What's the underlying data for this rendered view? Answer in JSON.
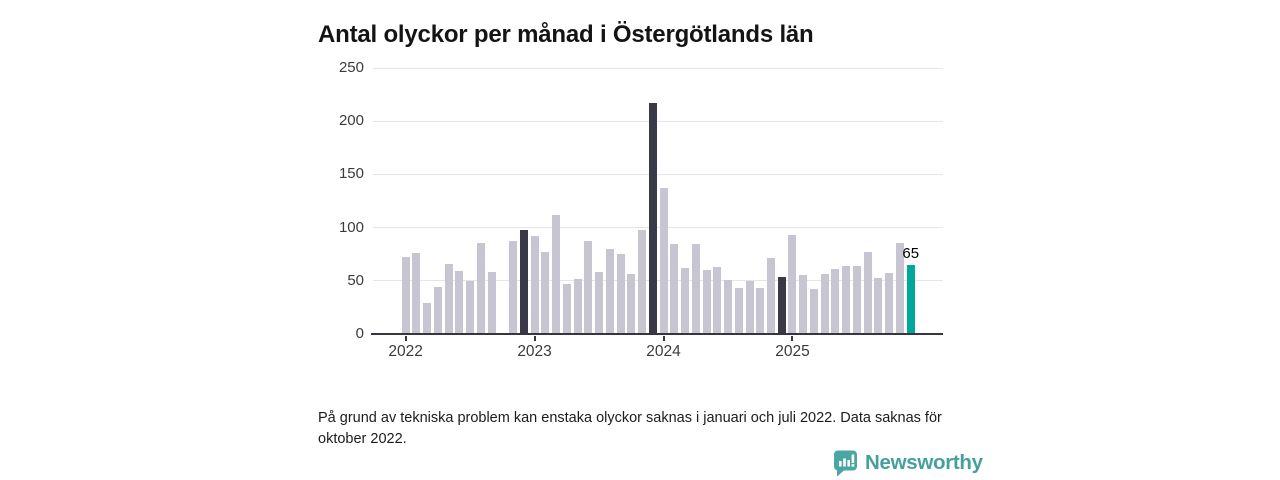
{
  "title": "Antal olyckor per månad i Östergötlands län",
  "footnote": {
    "lines": [
      "På grund av tekniska problem kan enstaka olyckor saknas i januari och juli 2022. Data saknas för",
      "oktober 2022."
    ]
  },
  "branding": {
    "logo_text": "Newsworthy",
    "logo_icon": "speech-bubble-bar-chart-icon"
  },
  "colors": {
    "bar_normal": "#c7c5d2",
    "bar_dark": "#3a3947",
    "bar_highlight": "#00a79b",
    "gridline": "#e5e5e9",
    "axis": "#37363f",
    "logo": "#45a09c"
  },
  "chart_data": {
    "type": "bar",
    "title": "Antal olyckor per månad i Östergötlands län",
    "xlabel": "",
    "ylabel": "",
    "ylim": [
      0,
      250
    ],
    "y_ticks": [
      0,
      50,
      100,
      150,
      200,
      250
    ],
    "x_tick_labels": [
      "2022",
      "2023",
      "2024",
      "2025"
    ],
    "grid": "horizontal",
    "legend": "none",
    "highlight_value_label": "65",
    "months": [
      {
        "month": "2022-01",
        "value": 72,
        "type": "normal"
      },
      {
        "month": "2022-02",
        "value": 76,
        "type": "normal"
      },
      {
        "month": "2022-03",
        "value": 29,
        "type": "normal"
      },
      {
        "month": "2022-04",
        "value": 44,
        "type": "normal"
      },
      {
        "month": "2022-05",
        "value": 66,
        "type": "normal"
      },
      {
        "month": "2022-06",
        "value": 59,
        "type": "normal"
      },
      {
        "month": "2022-07",
        "value": 50,
        "type": "normal"
      },
      {
        "month": "2022-08",
        "value": 86,
        "type": "normal"
      },
      {
        "month": "2022-09",
        "value": 58,
        "type": "normal"
      },
      {
        "month": "2022-10",
        "value": null,
        "type": "missing"
      },
      {
        "month": "2022-11",
        "value": 87,
        "type": "normal"
      },
      {
        "month": "2022-12",
        "value": 98,
        "type": "dark"
      },
      {
        "month": "2023-01",
        "value": 92,
        "type": "normal"
      },
      {
        "month": "2023-02",
        "value": 77,
        "type": "normal"
      },
      {
        "month": "2023-03",
        "value": 112,
        "type": "normal"
      },
      {
        "month": "2023-04",
        "value": 47,
        "type": "normal"
      },
      {
        "month": "2023-05",
        "value": 52,
        "type": "normal"
      },
      {
        "month": "2023-06",
        "value": 87,
        "type": "normal"
      },
      {
        "month": "2023-07",
        "value": 58,
        "type": "normal"
      },
      {
        "month": "2023-08",
        "value": 80,
        "type": "normal"
      },
      {
        "month": "2023-09",
        "value": 75,
        "type": "normal"
      },
      {
        "month": "2023-10",
        "value": 56,
        "type": "normal"
      },
      {
        "month": "2023-11",
        "value": 98,
        "type": "normal"
      },
      {
        "month": "2023-12",
        "value": 217,
        "type": "dark"
      },
      {
        "month": "2024-01",
        "value": 137,
        "type": "normal"
      },
      {
        "month": "2024-02",
        "value": 85,
        "type": "normal"
      },
      {
        "month": "2024-03",
        "value": 62,
        "type": "normal"
      },
      {
        "month": "2024-04",
        "value": 85,
        "type": "normal"
      },
      {
        "month": "2024-05",
        "value": 60,
        "type": "normal"
      },
      {
        "month": "2024-06",
        "value": 63,
        "type": "normal"
      },
      {
        "month": "2024-07",
        "value": 51,
        "type": "normal"
      },
      {
        "month": "2024-08",
        "value": 43,
        "type": "normal"
      },
      {
        "month": "2024-09",
        "value": 50,
        "type": "normal"
      },
      {
        "month": "2024-10",
        "value": 43,
        "type": "normal"
      },
      {
        "month": "2024-11",
        "value": 71,
        "type": "normal"
      },
      {
        "month": "2024-12",
        "value": 54,
        "type": "dark"
      },
      {
        "month": "2025-01",
        "value": 93,
        "type": "normal"
      },
      {
        "month": "2025-02",
        "value": 55,
        "type": "normal"
      },
      {
        "month": "2025-03",
        "value": 42,
        "type": "normal"
      },
      {
        "month": "2025-04",
        "value": 56,
        "type": "normal"
      },
      {
        "month": "2025-05",
        "value": 61,
        "type": "normal"
      },
      {
        "month": "2025-06",
        "value": 64,
        "type": "normal"
      },
      {
        "month": "2025-07",
        "value": 64,
        "type": "normal"
      },
      {
        "month": "2025-08",
        "value": 77,
        "type": "normal"
      },
      {
        "month": "2025-09",
        "value": 53,
        "type": "normal"
      },
      {
        "month": "2025-10",
        "value": 57,
        "type": "normal"
      },
      {
        "month": "2025-11",
        "value": 86,
        "type": "normal"
      },
      {
        "month": "2025-12",
        "value": 65,
        "type": "highlight"
      }
    ]
  }
}
